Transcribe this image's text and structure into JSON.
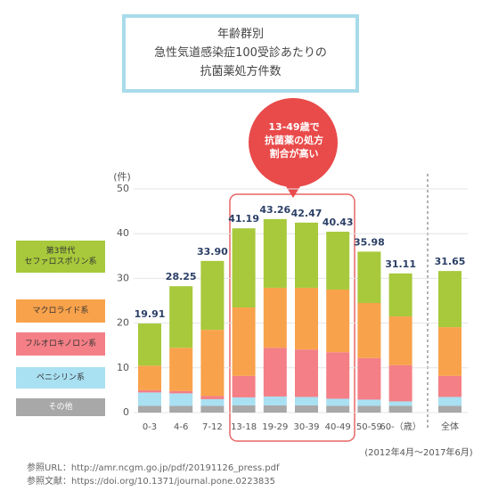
{
  "chart_data": {
    "type": "stacked_bar",
    "title": "年齢群別\n急性気道感染症100受診あたりの\n抗菌薬処方件数",
    "y_label": "(件)",
    "categories": [
      "0-3",
      "4-6",
      "7-12",
      "13-18",
      "19-29",
      "30-39",
      "40-49",
      "50-59",
      "60-（歳）",
      "全体"
    ],
    "series": [
      {
        "name": "その他",
        "color": "#a8a8a8",
        "values": [
          1.5,
          1.5,
          1.5,
          1.6,
          1.6,
          1.6,
          1.5,
          1.5,
          1.5,
          1.5
        ]
      },
      {
        "name": "ペニシリン系",
        "color": "#a9e0f2",
        "values": [
          3.0,
          2.8,
          1.5,
          1.8,
          2.0,
          1.9,
          1.6,
          1.4,
          1.0,
          2.0
        ]
      },
      {
        "name": "フルオロキノロン系",
        "color": "#f47f86",
        "values": [
          0.5,
          0.5,
          0.7,
          4.8,
          10.9,
          10.6,
          10.4,
          9.3,
          8.1,
          4.7
        ]
      },
      {
        "name": "マクロライド系",
        "color": "#f8a24b",
        "values": [
          5.5,
          9.7,
          14.8,
          15.3,
          13.4,
          13.8,
          14.0,
          12.3,
          10.9,
          10.9
        ]
      },
      {
        "name": "第3世代\nセファロスポリン系",
        "color": "#a7c93b",
        "values": [
          9.41,
          13.75,
          15.4,
          17.69,
          15.36,
          14.57,
          12.93,
          11.48,
          9.61,
          12.55
        ]
      }
    ],
    "totals": [
      19.91,
      28.25,
      33.9,
      41.19,
      43.26,
      42.47,
      40.43,
      35.98,
      31.11,
      31.65
    ],
    "total_labels": [
      "19.91",
      "28.25",
      "33.90",
      "41.19",
      "43.26",
      "42.47",
      "40.43",
      "35.98",
      "31.11",
      "31.65"
    ],
    "ylim": [
      0,
      50
    ],
    "yticks": [
      0,
      10,
      20,
      30,
      40,
      50
    ],
    "grid": true,
    "annotation": "13-49歳で\n抗菌薬の処方\n割合が高い",
    "period_note": "(2012年4月〜2017年6月)",
    "references": [
      "参照URL：http://amr.ncgm.go.jp/pdf/20191126_press.pdf",
      "参照文献：https://doi.org/10.1371/journal.pone.0223835"
    ]
  }
}
